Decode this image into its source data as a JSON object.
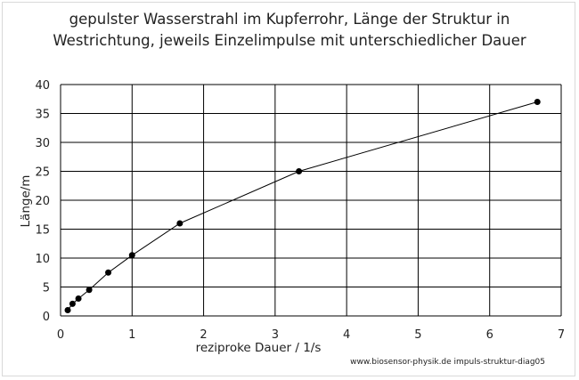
{
  "chart_data": {
    "type": "scatter",
    "title_line1": "gepulster Wasserstrahl im Kupferrohr, Länge der Struktur in",
    "title_line2": "Westrichtung, jeweils Einzelimpulse mit unterschiedlicher Dauer",
    "xlabel": "reziproke Dauer / 1/s",
    "ylabel": "Länge/m",
    "xlim": [
      0,
      7
    ],
    "ylim": [
      0,
      40
    ],
    "x_ticks": [
      "0",
      "1",
      "2",
      "3",
      "4",
      "5",
      "6",
      "7"
    ],
    "y_ticks": [
      "0",
      "5",
      "10",
      "15",
      "20",
      "25",
      "30",
      "35",
      "40"
    ],
    "grid": true,
    "connected": true,
    "series": [
      {
        "x": [
          0.1,
          0.167,
          0.25,
          0.4,
          0.667,
          1.0,
          1.667,
          3.333,
          6.667
        ],
        "y": [
          1.0,
          2.1,
          3.0,
          4.5,
          7.5,
          10.5,
          16.0,
          25.0,
          37.0
        ]
      }
    ]
  },
  "footer": "www.biosensor-physik.de   impuls-struktur-diag05"
}
